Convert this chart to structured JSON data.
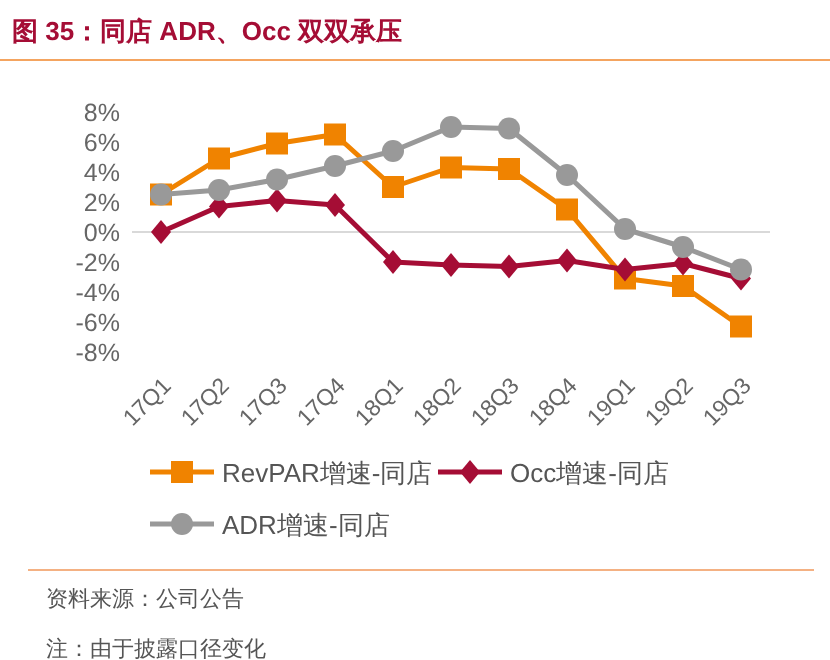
{
  "chart_data": {
    "type": "line",
    "title": "图 35：同店 ADR、Occ 双双承压",
    "categories": [
      "17Q1",
      "17Q2",
      "17Q3",
      "17Q4",
      "18Q1",
      "18Q2",
      "18Q3",
      "18Q4",
      "19Q1",
      "19Q2",
      "19Q3"
    ],
    "series": [
      {
        "name": "RevPAR增速-同店",
        "color": "#f08300",
        "marker": "square",
        "values": [
          2.5,
          4.9,
          5.9,
          6.5,
          3.0,
          4.3,
          4.2,
          1.5,
          -3.1,
          -3.6,
          -6.3
        ]
      },
      {
        "name": "Occ增速-同店",
        "color": "#a50d35",
        "marker": "diamond",
        "values": [
          0.0,
          1.7,
          2.1,
          1.8,
          -2.0,
          -2.2,
          -2.3,
          -1.9,
          -2.5,
          -2.1,
          -3.1
        ]
      },
      {
        "name": "ADR增速-同店",
        "color": "#999999",
        "marker": "circle",
        "values": [
          2.5,
          2.8,
          3.5,
          4.4,
          5.4,
          7.0,
          6.9,
          3.8,
          0.2,
          -1.0,
          -2.5
        ]
      }
    ],
    "ylim": [
      -8,
      8
    ],
    "yticks": [
      {
        "value": -8,
        "label": "-8%"
      },
      {
        "value": -6,
        "label": "-6%"
      },
      {
        "value": -4,
        "label": "-4%"
      },
      {
        "value": -2,
        "label": "-2%"
      },
      {
        "value": 0,
        "label": "0%"
      },
      {
        "value": 2,
        "label": "2%"
      },
      {
        "value": 4,
        "label": "4%"
      },
      {
        "value": 6,
        "label": "6%"
      },
      {
        "value": 8,
        "label": "8%"
      }
    ],
    "ref_lines": [
      {
        "axis": "y",
        "value": 0,
        "color": "#d9d9d9"
      }
    ],
    "legend": "bottom",
    "annotations": [
      "资料来源：公司公告",
      "注：由于披露口径变化"
    ]
  }
}
